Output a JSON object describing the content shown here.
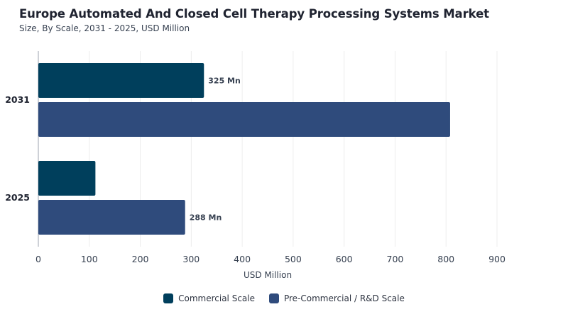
{
  "header": {
    "title": "Europe Automated And Closed Cell Therapy Processing Systems Market",
    "subtitle": "Size, By Scale, 2031 - 2025, USD Million"
  },
  "chart_data": {
    "type": "bar",
    "orientation": "horizontal",
    "categories": [
      "2031",
      "2025"
    ],
    "series": [
      {
        "name": "Commercial Scale",
        "color": "#003f5c",
        "values": [
          325,
          112
        ],
        "labels": [
          "325 Mn",
          ""
        ]
      },
      {
        "name": "Pre-Commercial / R&D Scale",
        "color": "#2f4b7c",
        "values": [
          808,
          288
        ],
        "labels": [
          "",
          "288 Mn"
        ]
      }
    ],
    "xlabel": "USD Million",
    "ylabel": "",
    "xlim": [
      0,
      900
    ],
    "xticks": [
      "0",
      "100",
      "200",
      "300",
      "400",
      "500",
      "600",
      "700",
      "800",
      "900"
    ],
    "grid": true,
    "legend_position": "bottom-center"
  }
}
